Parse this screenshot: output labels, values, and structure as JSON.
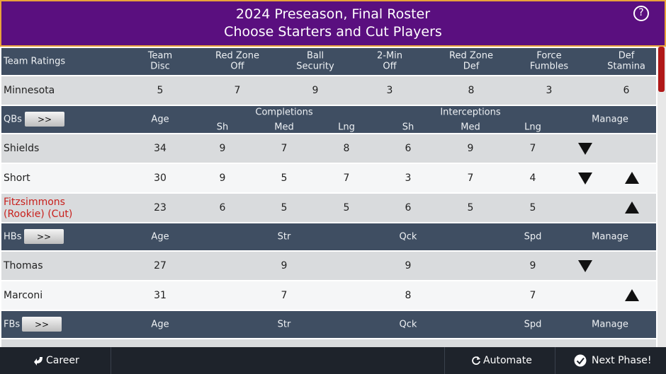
{
  "header": {
    "title_line1": "2024 Preseason, Final Roster",
    "title_line2": "Choose Starters and Cut Players",
    "help": "?"
  },
  "team_ratings": {
    "label": "Team Ratings",
    "columns": [
      [
        "Team",
        "Disc"
      ],
      [
        "Red Zone",
        "Off"
      ],
      [
        "Ball",
        "Security"
      ],
      [
        "2-Min",
        "Off"
      ],
      [
        "Red Zone",
        "Def"
      ],
      [
        "Force",
        "Fumbles"
      ],
      [
        "Def",
        "Stamina"
      ]
    ],
    "team": "Minnesota",
    "values": [
      5,
      7,
      9,
      3,
      8,
      3,
      6
    ]
  },
  "qbs": {
    "label": "QBs",
    "button": ">>",
    "age": "Age",
    "groups": [
      {
        "label": "Completions",
        "columns": [
          "Sh",
          "Med",
          "Lng"
        ]
      },
      {
        "label": "Interceptions",
        "columns": [
          "Sh",
          "Med",
          "Lng"
        ]
      }
    ],
    "manage": "Manage",
    "rows": [
      {
        "name": [
          "Shields"
        ],
        "age": 34,
        "values": [
          9,
          7,
          8,
          6,
          9,
          7
        ]
      },
      {
        "name": [
          "Short"
        ],
        "age": 30,
        "values": [
          9,
          5,
          7,
          3,
          7,
          4
        ]
      },
      {
        "name": [
          "Fitzsimmons",
          "(Rookie) (Cut)"
        ],
        "age": 23,
        "values": [
          6,
          5,
          5,
          6,
          5,
          5
        ]
      }
    ]
  },
  "hbs": {
    "label": "HBs",
    "button": ">>",
    "columns": [
      "Age",
      "Str",
      "Qck",
      "Spd",
      "Manage"
    ],
    "rows": [
      {
        "name": [
          "Thomas"
        ],
        "age": 27,
        "values": [
          9,
          9,
          9
        ]
      },
      {
        "name": [
          "Marconi"
        ],
        "age": 31,
        "values": [
          7,
          8,
          7
        ]
      }
    ]
  },
  "fbs": {
    "label": "FBs",
    "button": ">>",
    "columns": [
      "Age",
      "Str",
      "Qck",
      "Spd",
      "Manage"
    ]
  },
  "footer": {
    "career": "Career",
    "automate": "Automate",
    "next": "Next Phase!"
  }
}
